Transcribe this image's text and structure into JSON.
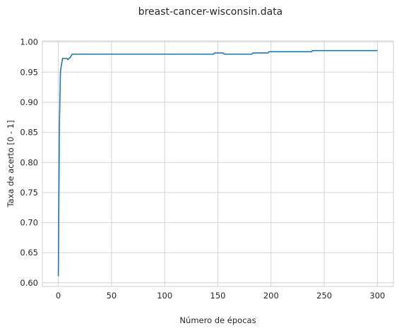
{
  "chart_data": {
    "type": "line",
    "title": "breast-cancer-wisconsin.data",
    "xlabel": "Número de épocas",
    "ylabel": "Taxa de acerto [0 - 1]",
    "xlim": [
      -15,
      315
    ],
    "ylim": [
      0.594,
      1.002
    ],
    "xticks": [
      0,
      50,
      100,
      150,
      200,
      250,
      300
    ],
    "yticks": [
      0.6,
      0.65,
      0.7,
      0.75,
      0.8,
      0.85,
      0.9,
      0.95,
      1.0
    ],
    "xtick_labels": [
      "0",
      "50",
      "100",
      "150",
      "200",
      "250",
      "300"
    ],
    "ytick_labels": [
      "0.60",
      "0.65",
      "0.70",
      "0.75",
      "0.80",
      "0.85",
      "0.90",
      "0.95",
      "1.00"
    ],
    "grid": true,
    "series": [
      {
        "color": "#1f77b4",
        "x": [
          0,
          1,
          2,
          3,
          4,
          5,
          6,
          7,
          8,
          9,
          10,
          11,
          12,
          13,
          14,
          15,
          30,
          60,
          100,
          146,
          147,
          155,
          156,
          182,
          183,
          197,
          198,
          238,
          239,
          300
        ],
        "y": [
          0.611,
          0.86,
          0.951,
          0.963,
          0.973,
          0.973,
          0.973,
          0.973,
          0.973,
          0.971,
          0.973,
          0.974,
          0.977,
          0.98,
          0.98,
          0.98,
          0.98,
          0.98,
          0.98,
          0.98,
          0.982,
          0.982,
          0.98,
          0.98,
          0.982,
          0.982,
          0.984,
          0.984,
          0.986,
          0.986
        ]
      }
    ]
  }
}
